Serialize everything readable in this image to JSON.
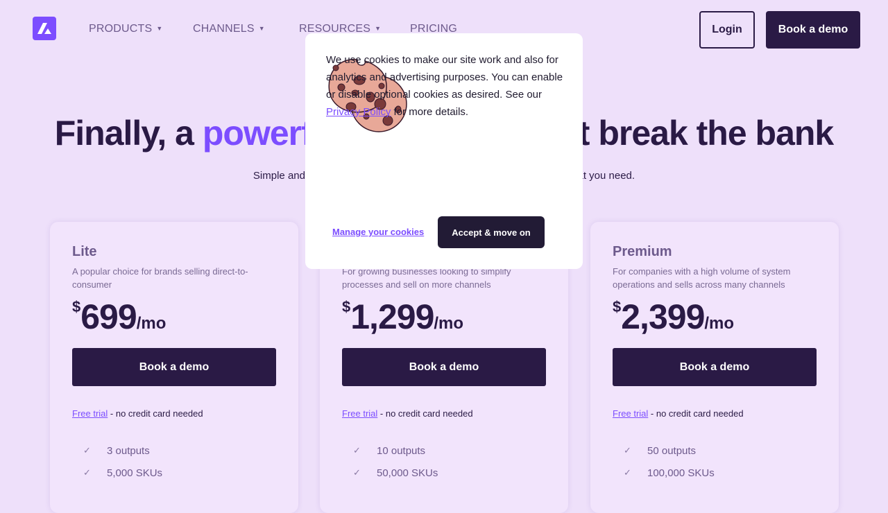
{
  "nav": {
    "items": [
      {
        "label": "PRODUCTS",
        "dropdown": true
      },
      {
        "label": "CHANNELS",
        "dropdown": true
      },
      {
        "label": "RESOURCES",
        "dropdown": true
      },
      {
        "label": "PRICING",
        "dropdown": false
      }
    ],
    "login": "Login",
    "demo": "Book a demo"
  },
  "hero": {
    "title_a": "Finally, a ",
    "title_hl": "powerf",
    "title_b": "t break the bank",
    "subtitle_a": "Simple and a",
    "subtitle_b": "at you need."
  },
  "plans": [
    {
      "name": "Lite",
      "desc": "A popular choice for brands selling direct-to-consumer",
      "currency": "$",
      "price": "699",
      "per": "/mo",
      "button": "Book a demo",
      "trial_link": "Free trial",
      "trial_rest": " - no credit card needed",
      "features": [
        "3 outputs",
        "5,000 SKUs"
      ]
    },
    {
      "name": "",
      "desc": "For growing businesses looking to simplify processes and sell on more channels",
      "currency": "$",
      "price": "1,299",
      "per": "/mo",
      "button": "Book a demo",
      "trial_link": "Free trial",
      "trial_rest": " - no credit card needed",
      "features": [
        "10 outputs",
        "50,000 SKUs"
      ]
    },
    {
      "name": "Premium",
      "desc": "For companies with a high volume of system operations and sells across many channels",
      "currency": "$",
      "price": "2,399",
      "per": "/mo",
      "button": "Book a demo",
      "trial_link": "Free trial",
      "trial_rest": " - no credit card needed",
      "features": [
        "50 outputs",
        "100,000 SKUs"
      ]
    }
  ],
  "cookie": {
    "text_a": "We use cookies to make our site work and also for analytics and advertising purposes. You can enable or disable optional cookies as desired. See our ",
    "link": "Privacy Policy",
    "text_b": " for more details.",
    "manage": "Manage your cookies",
    "accept": "Accept & move on"
  },
  "colors": {
    "accent": "#7c4dff",
    "dark": "#2a1a45",
    "background": "#eee0fa"
  }
}
